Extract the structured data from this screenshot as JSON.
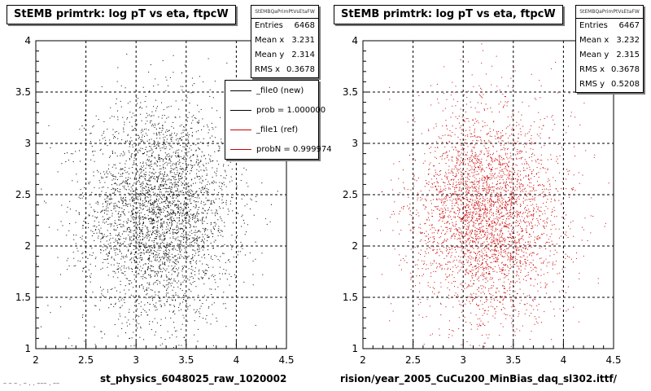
{
  "chart_data": [
    {
      "type": "scatter",
      "title": "StEMB primtrk: log pT vs eta, ftpcW",
      "xlim": [
        2,
        4.5
      ],
      "ylim": [
        1,
        4
      ],
      "xticks": [
        "2",
        "2.5",
        "3",
        "3.5",
        "4",
        "4.5"
      ],
      "yticks": [
        "1",
        "1.5",
        "2",
        "2.5",
        "3",
        "3.5",
        "4"
      ],
      "xlabel": "st_physics_6048025_raw_1020002",
      "grid": true,
      "color": "#000000",
      "distribution": {
        "mean_x": 3.231,
        "mean_y": 2.314,
        "rms_x": 0.3678
      },
      "stats": {
        "header": "StEMBQaPrimPtVsEtaFW",
        "rows": [
          {
            "label": "Entries",
            "value": "6468"
          },
          {
            "label": "Mean x",
            "value": "3.231"
          },
          {
            "label": "Mean y",
            "value": "2.314"
          },
          {
            "label": "RMS x",
            "value": "0.3678"
          }
        ]
      },
      "legend": {
        "entries": [
          {
            "label": "_file0 (new)",
            "color": "#000000"
          },
          {
            "label": "prob = 1.000000",
            "color": "#000000"
          },
          {
            "label": "_file1 (ref)",
            "color": "#cc0000"
          },
          {
            "label": "probN = 0.999974",
            "color": "#cc0000"
          }
        ]
      }
    },
    {
      "type": "scatter",
      "title": "StEMB primtrk: log pT vs eta, ftpcW",
      "xlim": [
        2,
        4.5
      ],
      "ylim": [
        1,
        4
      ],
      "xticks": [
        "2",
        "2.5",
        "3",
        "3.5",
        "4",
        "4.5"
      ],
      "yticks": [
        "1",
        "1.5",
        "2",
        "2.5",
        "3",
        "3.5",
        "4"
      ],
      "xlabel": "rision/year_2005_CuCu200_MinBias_daq_sl302.ittf/",
      "grid": true,
      "color": "#cc0000",
      "distribution": {
        "mean_x": 3.232,
        "mean_y": 2.315,
        "rms_x": 0.3678,
        "rms_y": 0.5208
      },
      "stats": {
        "header": "StEMBQaPrimPtVsEtaFW",
        "rows": [
          {
            "label": "Entries",
            "value": "6467"
          },
          {
            "label": "Mean x",
            "value": "3.232"
          },
          {
            "label": "Mean y",
            "value": "2.315"
          },
          {
            "label": "RMS x",
            "value": "0.3678"
          },
          {
            "label": "RMS y",
            "value": "0.5208"
          }
        ]
      }
    }
  ],
  "footer_text": "– – – . –  . . ––– . ––"
}
